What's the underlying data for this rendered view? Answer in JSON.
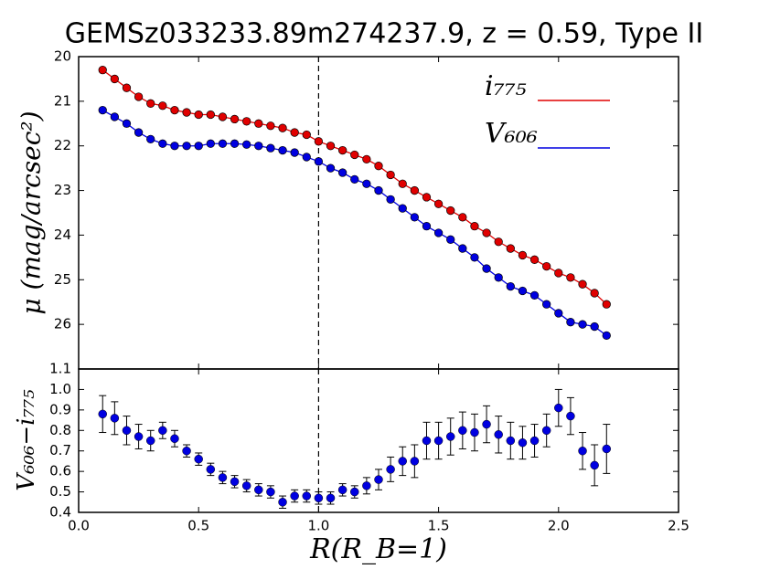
{
  "chart_data": [
    {
      "type": "line",
      "title": "GEMSz033233.89m274237.9, z = 0.59, Type II",
      "y_label": "μ (mag/arcsec²)",
      "x": [
        0.1,
        0.15,
        0.2,
        0.25,
        0.3,
        0.35,
        0.4,
        0.45,
        0.5,
        0.55,
        0.6,
        0.65,
        0.7,
        0.75,
        0.8,
        0.85,
        0.9,
        0.95,
        1.0,
        1.05,
        1.1,
        1.15,
        1.2,
        1.25,
        1.3,
        1.35,
        1.4,
        1.45,
        1.5,
        1.55,
        1.6,
        1.65,
        1.7,
        1.75,
        1.8,
        1.85,
        1.9,
        1.95,
        2.0,
        2.05,
        2.1,
        2.15,
        2.2
      ],
      "series": [
        {
          "name": "i₇₇₅",
          "color": "#e00000",
          "values": [
            20.3,
            20.5,
            20.7,
            20.9,
            21.05,
            21.1,
            21.2,
            21.25,
            21.3,
            21.3,
            21.35,
            21.4,
            21.45,
            21.5,
            21.55,
            21.6,
            21.7,
            21.75,
            21.9,
            22.0,
            22.1,
            22.2,
            22.3,
            22.45,
            22.65,
            22.85,
            23.0,
            23.15,
            23.3,
            23.45,
            23.6,
            23.8,
            23.95,
            24.15,
            24.3,
            24.45,
            24.55,
            24.7,
            24.85,
            24.95,
            25.1,
            25.3,
            25.55
          ]
        },
        {
          "name": "V₆₀₆",
          "color": "#0000e0",
          "values": [
            21.2,
            21.35,
            21.5,
            21.7,
            21.85,
            21.95,
            22.0,
            22.0,
            22.0,
            21.95,
            21.95,
            21.95,
            21.97,
            22.0,
            22.05,
            22.1,
            22.15,
            22.25,
            22.35,
            22.5,
            22.6,
            22.75,
            22.85,
            23.0,
            23.2,
            23.4,
            23.6,
            23.8,
            23.95,
            24.1,
            24.3,
            24.5,
            24.75,
            24.95,
            25.15,
            25.25,
            25.35,
            25.55,
            25.75,
            25.95,
            26.0,
            26.05,
            26.25
          ]
        }
      ],
      "xlim": [
        0,
        2.5
      ],
      "xticks": [
        0,
        0.5,
        1,
        1.5,
        2,
        2.5
      ],
      "ylim": [
        27,
        20
      ],
      "yticks": [
        20,
        21,
        22,
        23,
        24,
        25,
        26
      ],
      "vline": 1.0
    },
    {
      "type": "errorbar",
      "x_label": "R(R_B=1)",
      "y_label": "V₆₀₆−i₇₇₅",
      "color": "#0000e0",
      "x": [
        0.1,
        0.15,
        0.2,
        0.25,
        0.3,
        0.35,
        0.4,
        0.45,
        0.5,
        0.55,
        0.6,
        0.65,
        0.7,
        0.75,
        0.8,
        0.85,
        0.9,
        0.95,
        1.0,
        1.05,
        1.1,
        1.15,
        1.2,
        1.25,
        1.3,
        1.35,
        1.4,
        1.45,
        1.5,
        1.55,
        1.6,
        1.65,
        1.7,
        1.75,
        1.8,
        1.85,
        1.9,
        1.95,
        2.0,
        2.05,
        2.1,
        2.15,
        2.2
      ],
      "values": [
        0.88,
        0.86,
        0.8,
        0.77,
        0.75,
        0.8,
        0.76,
        0.7,
        0.66,
        0.61,
        0.57,
        0.55,
        0.53,
        0.51,
        0.5,
        0.45,
        0.48,
        0.48,
        0.47,
        0.47,
        0.51,
        0.5,
        0.53,
        0.56,
        0.61,
        0.65,
        0.65,
        0.75,
        0.75,
        0.77,
        0.8,
        0.79,
        0.83,
        0.78,
        0.75,
        0.74,
        0.75,
        0.8,
        0.91,
        0.87,
        0.7,
        0.63,
        0.71
      ],
      "errors": [
        0.09,
        0.08,
        0.07,
        0.06,
        0.05,
        0.04,
        0.04,
        0.03,
        0.03,
        0.03,
        0.03,
        0.03,
        0.03,
        0.03,
        0.03,
        0.03,
        0.03,
        0.03,
        0.03,
        0.03,
        0.03,
        0.03,
        0.04,
        0.05,
        0.06,
        0.07,
        0.08,
        0.09,
        0.09,
        0.09,
        0.09,
        0.09,
        0.09,
        0.09,
        0.09,
        0.08,
        0.08,
        0.08,
        0.09,
        0.09,
        0.09,
        0.1,
        0.12
      ],
      "xlim": [
        0,
        2.5
      ],
      "xticks": [
        {
          "value": 0,
          "label": "0.0"
        },
        0.5,
        {
          "value": 1,
          "label": "1.0"
        },
        1.5,
        {
          "value": 2,
          "label": "2.0"
        },
        2.5
      ],
      "ylim": [
        0.4,
        1.1
      ],
      "yticks": [
        0.4,
        0.5,
        0.6,
        0.7,
        0.8,
        0.9,
        {
          "value": 1,
          "label": "1.0"
        },
        1.1
      ],
      "vline": 1.0
    }
  ]
}
